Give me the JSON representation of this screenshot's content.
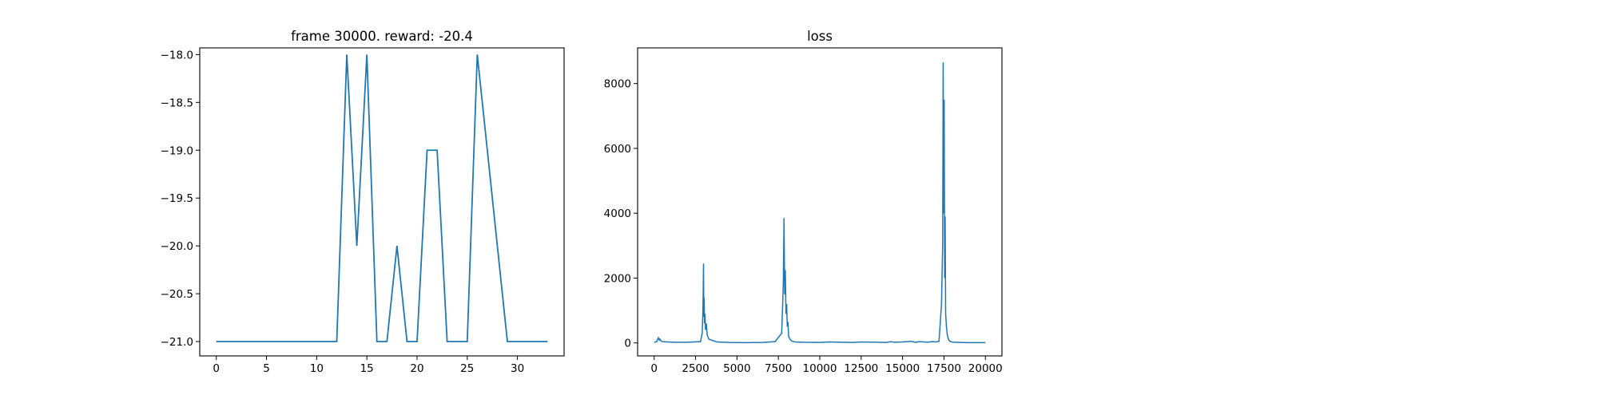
{
  "chart_data": [
    {
      "type": "line",
      "title": "frame 30000. reward: -20.4",
      "xlabel": "",
      "ylabel": "",
      "xlim": [
        -1.65,
        34.65
      ],
      "ylim": [
        -21.15,
        -17.93
      ],
      "xticks": [
        0,
        5,
        10,
        15,
        20,
        25,
        30
      ],
      "yticks": [
        -21.0,
        -20.5,
        -20.0,
        -19.5,
        -19.0,
        -18.5,
        -18.0
      ],
      "ytick_labels": [
        "−21.0",
        "−20.5",
        "−20.0",
        "−19.5",
        "−19.0",
        "−18.5",
        "−18.0"
      ],
      "grid": false,
      "color": "#1f77b4",
      "series": [
        {
          "x": [
            0,
            1,
            2,
            3,
            4,
            5,
            6,
            7,
            8,
            9,
            10,
            11,
            12,
            13,
            14,
            15,
            16,
            17,
            18,
            19,
            20,
            21,
            22,
            23,
            24,
            25,
            26,
            27,
            28,
            29,
            30,
            31,
            32,
            33
          ],
          "y": [
            -21,
            -21,
            -21,
            -21,
            -21,
            -21,
            -21,
            -21,
            -21,
            -21,
            -21,
            -21,
            -21,
            -18,
            -20,
            -18,
            -21,
            -21,
            -20,
            -21,
            -21,
            -19,
            -19,
            -21,
            -21,
            -21,
            -18,
            -19,
            -20,
            -21,
            -21,
            -21,
            -21,
            -21
          ]
        }
      ]
    },
    {
      "type": "line",
      "title": "loss",
      "xlabel": "",
      "ylabel": "",
      "xlim": [
        -1000,
        21000
      ],
      "ylim": [
        -400,
        9100
      ],
      "xticks": [
        0,
        2500,
        5000,
        7500,
        10000,
        12500,
        15000,
        17500,
        20000
      ],
      "yticks": [
        0,
        2000,
        4000,
        6000,
        8000
      ],
      "grid": false,
      "color": "#1f77b4",
      "series": [
        {
          "x": [
            0,
            150,
            250,
            300,
            350,
            420,
            500,
            800,
            1200,
            2000,
            2800,
            2900,
            2940,
            2960,
            2980,
            3000,
            3020,
            3040,
            3070,
            3100,
            3150,
            3200,
            3300,
            3500,
            3800,
            4500,
            5500,
            6500,
            7300,
            7700,
            7760,
            7800,
            7840,
            7880,
            7920,
            7960,
            8000,
            8040,
            8080,
            8120,
            8200,
            8300,
            8500,
            9000,
            10000,
            10500,
            12000,
            12500,
            13500,
            14000,
            14300,
            14500,
            15000,
            15500,
            15800,
            16000,
            16500,
            16800,
            17000,
            17200,
            17350,
            17420,
            17450,
            17480,
            17510,
            17540,
            17570,
            17600,
            17650,
            17700,
            17750,
            17800,
            17900,
            18100,
            18500,
            19000,
            19500,
            20000
          ],
          "y": [
            20,
            40,
            160,
            90,
            120,
            60,
            40,
            30,
            20,
            20,
            40,
            300,
            900,
            1500,
            2450,
            800,
            1400,
            600,
            900,
            400,
            600,
            250,
            120,
            80,
            30,
            15,
            10,
            15,
            40,
            300,
            1200,
            1900,
            3850,
            1500,
            2250,
            900,
            1200,
            500,
            650,
            200,
            120,
            60,
            30,
            20,
            15,
            30,
            15,
            30,
            20,
            15,
            40,
            20,
            30,
            50,
            20,
            40,
            25,
            40,
            30,
            50,
            1200,
            3000,
            8650,
            4000,
            7500,
            2000,
            3900,
            900,
            500,
            250,
            150,
            80,
            40,
            20,
            15,
            10,
            10,
            10
          ]
        }
      ]
    }
  ]
}
